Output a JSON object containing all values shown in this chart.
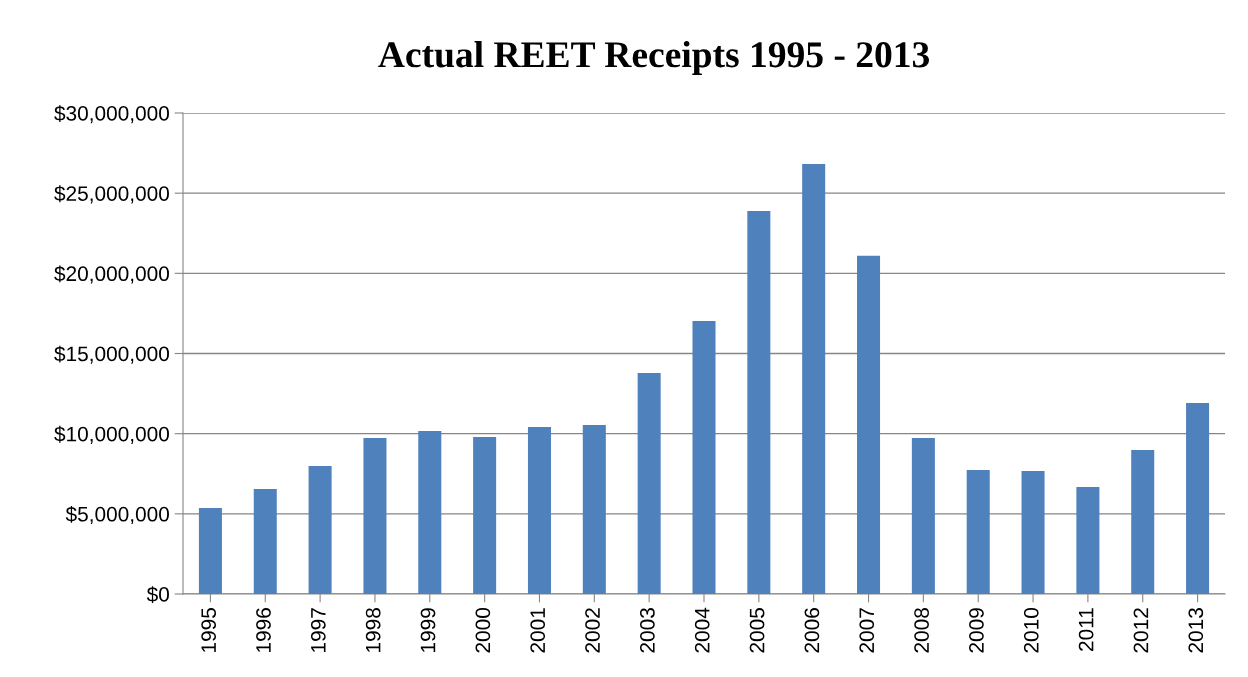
{
  "chart_data": {
    "type": "bar",
    "title": "Actual REET Receipts 1995 - 2013",
    "categories": [
      "1995",
      "1996",
      "1997",
      "1998",
      "1999",
      "2000",
      "2001",
      "2002",
      "2003",
      "2004",
      "2005",
      "2006",
      "2007",
      "2008",
      "2009",
      "2010",
      "2011",
      "2012",
      "2013"
    ],
    "values": [
      5360000,
      6550000,
      7980000,
      9730000,
      10170000,
      9790000,
      10420000,
      10540000,
      13790000,
      17030000,
      23890000,
      26820000,
      21090000,
      9730000,
      7740000,
      7670000,
      6670000,
      8980000,
      11920000
    ],
    "color": "#4f81bd",
    "ylim": [
      0,
      30000000
    ],
    "yticks": [
      {
        "value": 0,
        "label": "$0"
      },
      {
        "value": 5000000,
        "label": "$5,000,000"
      },
      {
        "value": 10000000,
        "label": "$10,000,000"
      },
      {
        "value": 15000000,
        "label": "$15,000,000"
      },
      {
        "value": 20000000,
        "label": "$20,000,000"
      },
      {
        "value": 25000000,
        "label": "$25,000,000"
      },
      {
        "value": 30000000,
        "label": "$30,000,000"
      }
    ],
    "grid": "y",
    "legend": false
  }
}
